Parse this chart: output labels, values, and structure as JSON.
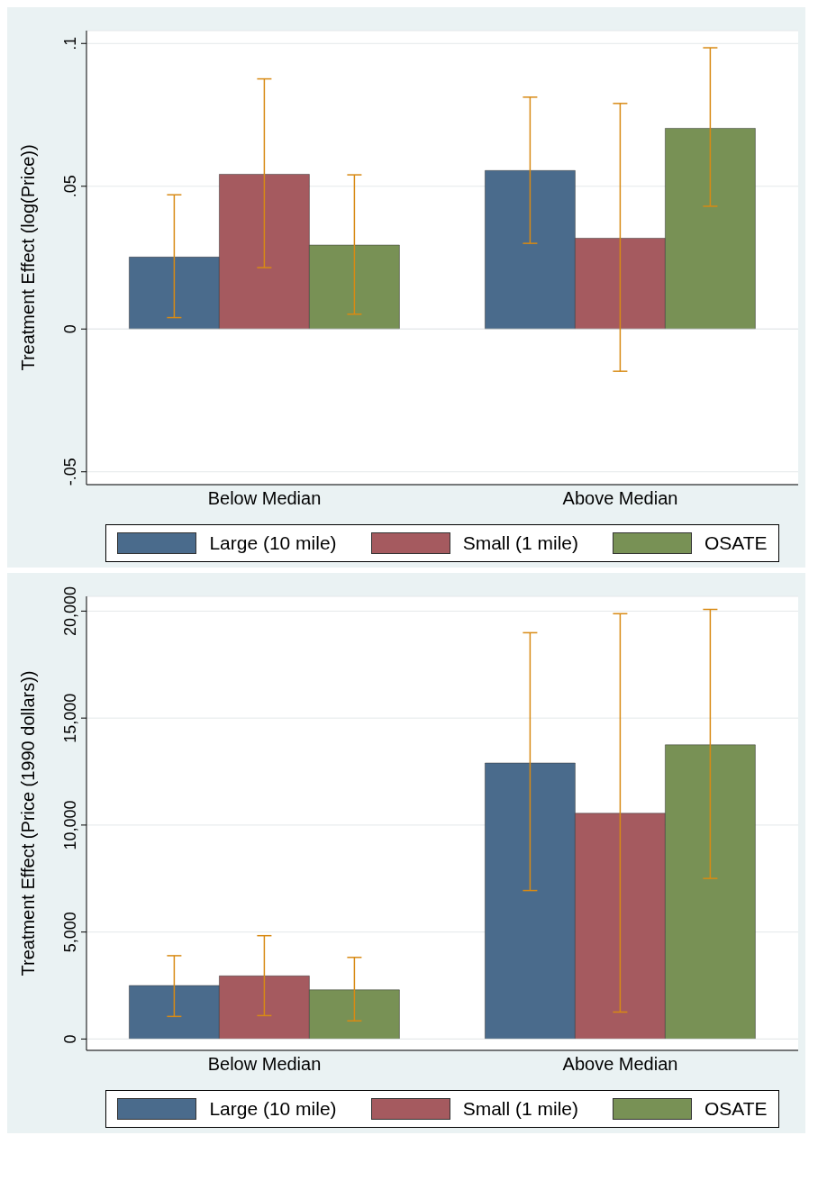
{
  "chart_data": [
    {
      "type": "bar",
      "ylabel": "Treatment Effect (log(Price))",
      "categories": [
        "Below Median",
        "Above Median"
      ],
      "series": [
        {
          "name": "Large (10 mile)",
          "color": "#4a6b8c",
          "values": [
            0.0252,
            0.0555
          ],
          "errors": [
            [
              0.004,
              0.047
            ],
            [
              0.03,
              0.0812
            ]
          ]
        },
        {
          "name": "Small (1 mile)",
          "color": "#a55a5f",
          "values": [
            0.0542,
            0.0318
          ],
          "errors": [
            [
              0.0215,
              0.0876
            ],
            [
              -0.0148,
              0.079
            ]
          ]
        },
        {
          "name": "OSATE",
          "color": "#789155",
          "values": [
            0.0294,
            0.0703
          ],
          "errors": [
            [
              0.0052,
              0.054
            ],
            [
              0.043,
              0.0985
            ]
          ]
        }
      ],
      "ylim": [
        -0.0545,
        0.1045
      ],
      "yticks": [
        {
          "value": -0.05,
          "label": "-.05"
        },
        0,
        {
          "value": 0.05,
          "label": ".05"
        },
        {
          "value": 0.1,
          "label": ".1"
        }
      ],
      "grid": "y",
      "legend": "bottom"
    },
    {
      "type": "bar",
      "ylabel": "Treatment Effect (Price (1990 dollars))",
      "categories": [
        "Below Median",
        "Above Median"
      ],
      "series": [
        {
          "name": "Large (10 mile)",
          "color": "#4a6b8c",
          "values": [
            2500,
            12900
          ],
          "errors": [
            [
              1055,
              3895
            ],
            [
              6940,
              18990
            ]
          ]
        },
        {
          "name": "Small (1 mile)",
          "color": "#a55a5f",
          "values": [
            2950,
            10550
          ],
          "errors": [
            [
              1095,
              4830
            ],
            [
              1260,
              19880
            ]
          ]
        },
        {
          "name": "OSATE",
          "color": "#789155",
          "values": [
            2300,
            13750
          ],
          "errors": [
            [
              850,
              3815
            ],
            [
              7505,
              20080
            ]
          ]
        }
      ],
      "ylim": [
        -530,
        20690
      ],
      "yticks": [
        0,
        {
          "value": 5000,
          "label": "5,000"
        },
        {
          "value": 10000,
          "label": "10,000"
        },
        {
          "value": 15000,
          "label": "15,000"
        },
        {
          "value": 20000,
          "label": "20,000"
        }
      ],
      "grid": "y",
      "legend": "bottom"
    }
  ]
}
